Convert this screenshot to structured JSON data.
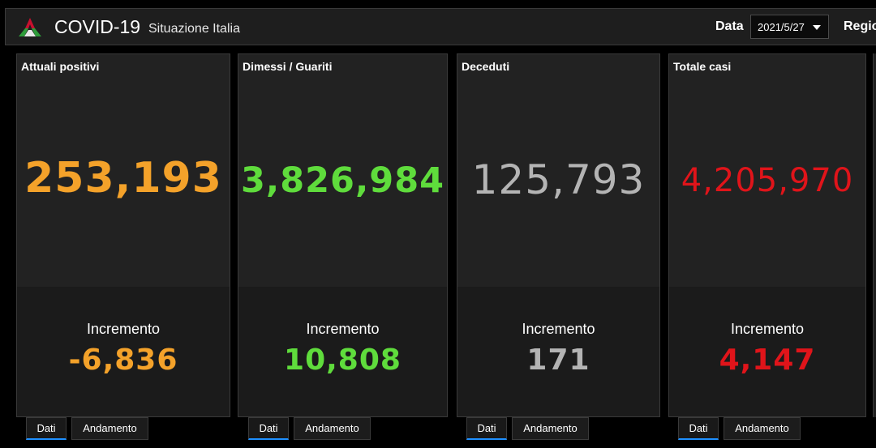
{
  "header": {
    "title": "COVID-19",
    "subtitle": "Situazione Italia",
    "date_label": "Data",
    "date_value": "2021/5/27",
    "region_label": "Regio"
  },
  "cards": [
    {
      "title": "Attuali positivi",
      "value": "253,193",
      "increment_label": "Incremento",
      "increment": "-6,836",
      "color": "#f4a22a"
    },
    {
      "title": "Dimessi / Guariti",
      "value": "3,826,984",
      "increment_label": "Incremento",
      "increment": "10,808",
      "color": "#5fdc3c"
    },
    {
      "title": "Deceduti",
      "value": "125,793",
      "increment_label": "Incremento",
      "increment": "171",
      "color": "#b4b4b4"
    },
    {
      "title": "Totale casi",
      "value": "4,205,970",
      "increment_label": "Incremento",
      "increment": "4,147",
      "color": "#e0141a"
    }
  ],
  "tabs": [
    {
      "dati": "Dati",
      "andamento": "Andamento"
    },
    {
      "dati": "Dati",
      "andamento": "Andamento"
    },
    {
      "dati": "Dati",
      "andamento": "Andamento"
    },
    {
      "dati": "Dati",
      "andamento": "Andamento"
    }
  ],
  "icons": {
    "logo": "italy-map-logo-icon",
    "dropdown": "caret-down-icon"
  },
  "colors": {
    "accent": "#1e90ff",
    "background": "#000000",
    "panel": "#222222"
  }
}
